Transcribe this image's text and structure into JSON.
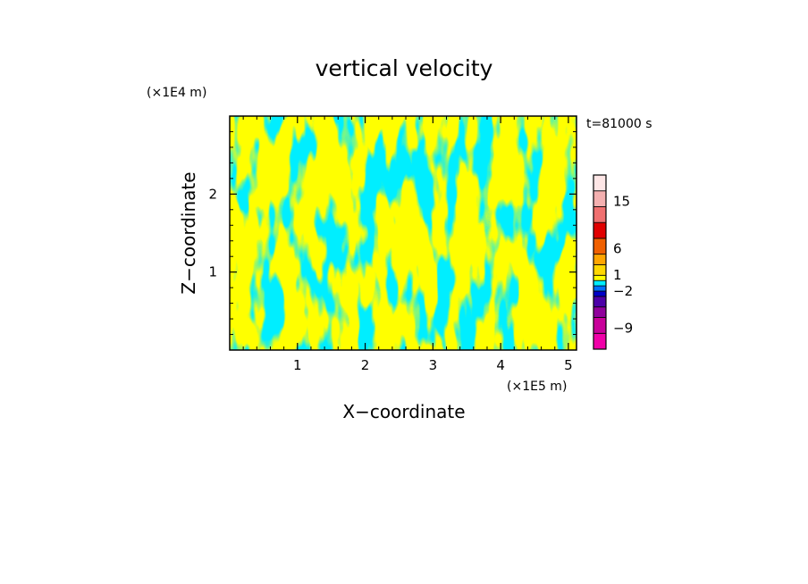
{
  "chart_data": {
    "type": "heatmap",
    "title": "vertical velocity",
    "xlabel": "X−coordinate",
    "ylabel": "Z−coordinate",
    "x_units": "(×1E5 m)",
    "y_units": "(×1E4 m)",
    "time_label": "t=81000 s",
    "xlim": [
      0,
      5.12
    ],
    "ylim": [
      0,
      3.0
    ],
    "x_ticks": [
      {
        "value": 1,
        "label": "1"
      },
      {
        "value": 2,
        "label": "2"
      },
      {
        "value": 3,
        "label": "3"
      },
      {
        "value": 4,
        "label": "4"
      },
      {
        "value": 5,
        "label": "5"
      }
    ],
    "y_ticks": [
      {
        "value": 1,
        "label": "1"
      },
      {
        "value": 2,
        "label": "2"
      }
    ],
    "field": {
      "dominant_levels": [
        "positive (yellow)",
        "negative (cyan)"
      ],
      "positive_color": "#ffff00",
      "negative_color": "#00eeff"
    },
    "colorbar": {
      "levels": [
        -12,
        -9,
        -6,
        -4,
        -2,
        -1,
        0,
        1,
        2,
        4,
        6,
        9,
        12,
        15,
        18
      ],
      "colors": [
        "#f000a8",
        "#c8009a",
        "#90009c",
        "#4c00a8",
        "#0000c8",
        "#0070ff",
        "#00eeff",
        "#ffff00",
        "#ffd700",
        "#ffa500",
        "#f06000",
        "#e00000",
        "#f07070",
        "#f4b0b0",
        "#fde6e6"
      ],
      "labeled_values": [
        {
          "value": 15,
          "label": "15"
        },
        {
          "value": 6,
          "label": "6"
        },
        {
          "value": 1,
          "label": "1"
        },
        {
          "value": -2,
          "label": "−2"
        },
        {
          "value": -9,
          "label": "−9"
        }
      ]
    }
  }
}
